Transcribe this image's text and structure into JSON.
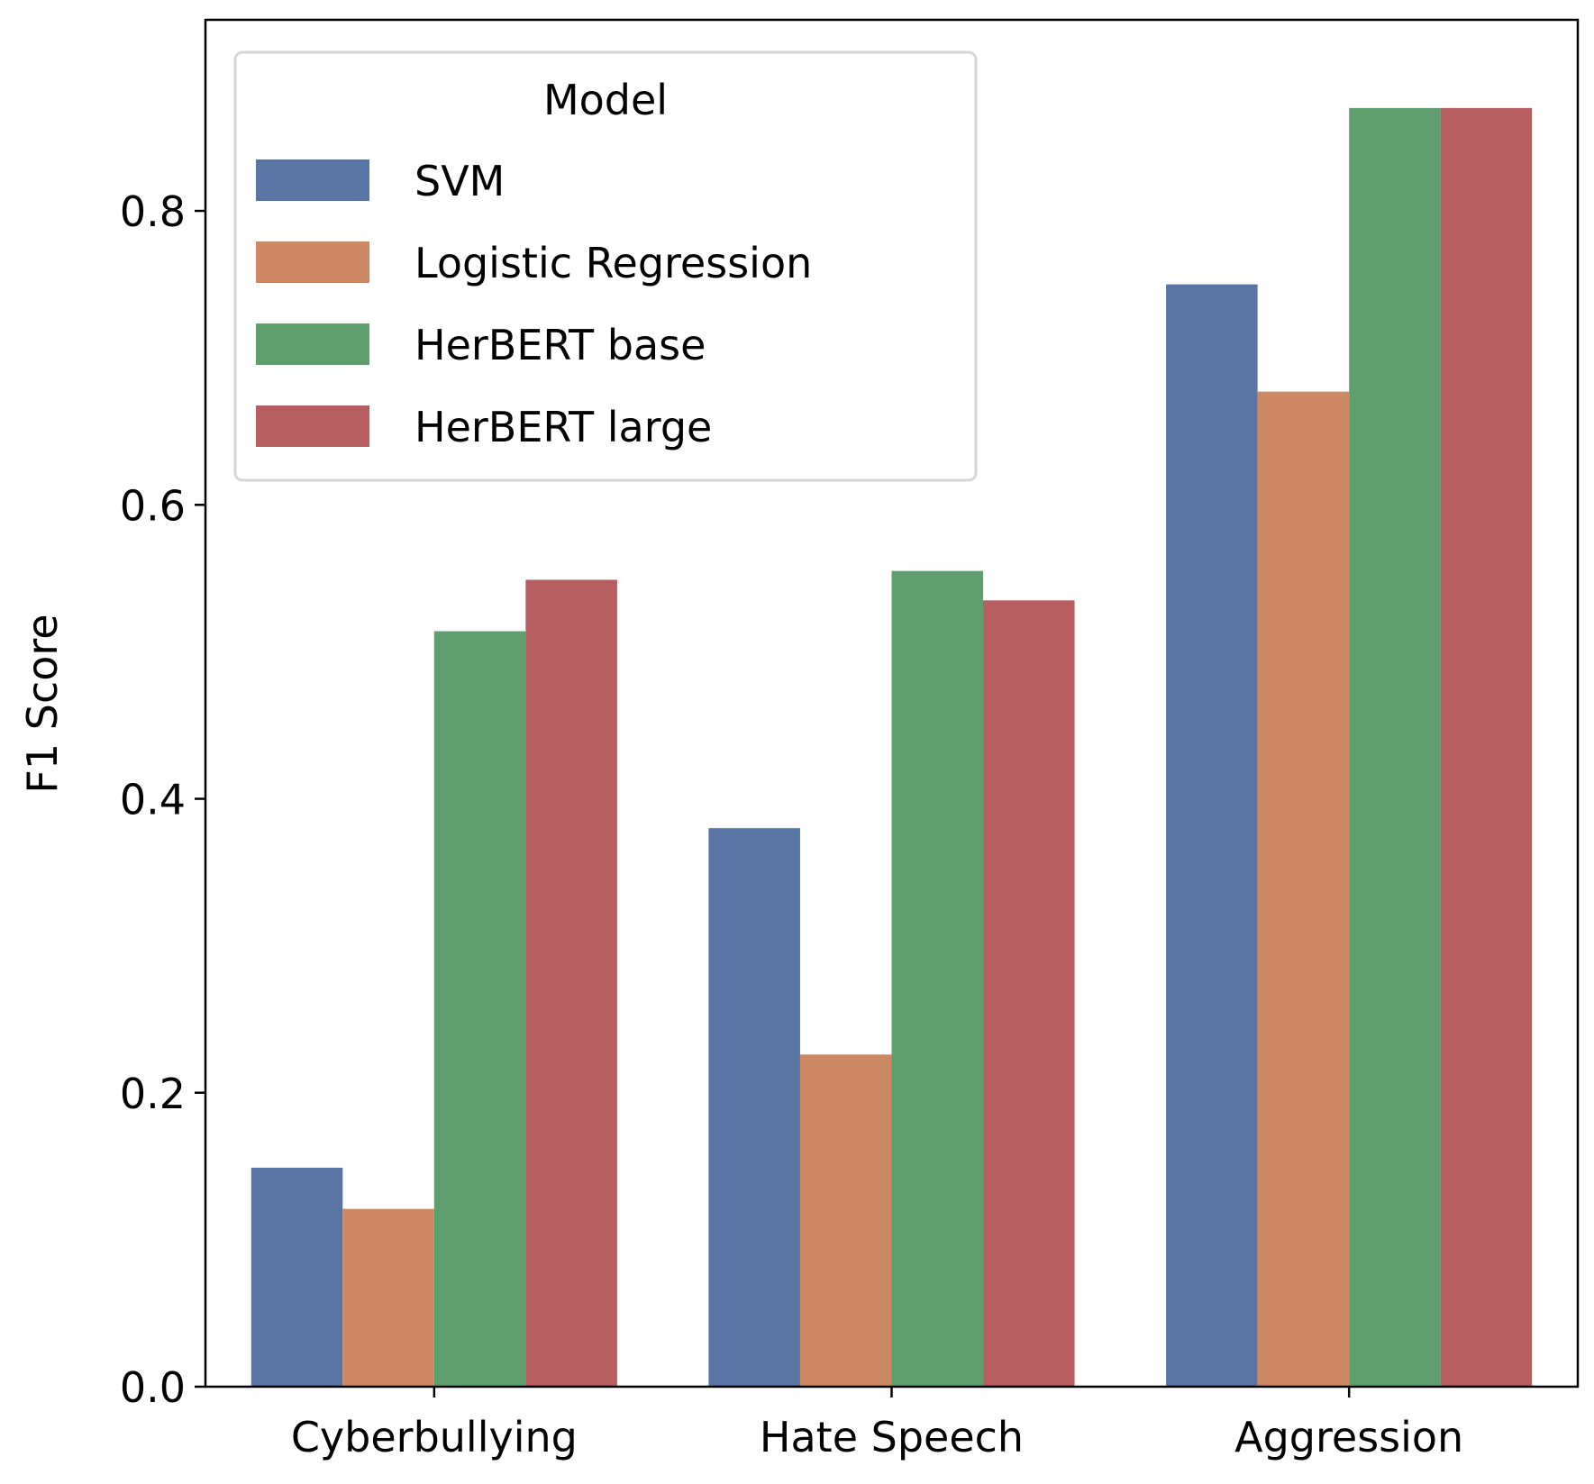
{
  "chart_data": {
    "type": "bar",
    "title": "",
    "xlabel": "",
    "ylabel": "F1 Score",
    "categories": [
      "Cyberbullying",
      "Hate Speech",
      "Aggression"
    ],
    "series": [
      {
        "name": "SVM",
        "color": "#5975a4",
        "values": [
          0.149,
          0.38,
          0.75
        ]
      },
      {
        "name": "Logistic Regression",
        "color": "#cc8963",
        "values": [
          0.121,
          0.226,
          0.677
        ]
      },
      {
        "name": "HerBERT base",
        "color": "#5f9e6e",
        "values": [
          0.514,
          0.555,
          0.87
        ]
      },
      {
        "name": "HerBERT large",
        "color": "#b55d60",
        "values": [
          0.549,
          0.535,
          0.87
        ]
      }
    ],
    "ylim": [
      0,
      0.93
    ],
    "yticks": [
      0.0,
      0.2,
      0.4,
      0.6,
      0.8
    ],
    "ytick_labels": [
      "0.0",
      "0.2",
      "0.4",
      "0.6",
      "0.8"
    ],
    "grid": false,
    "legend": {
      "title": "Model",
      "position": "top-left"
    }
  }
}
